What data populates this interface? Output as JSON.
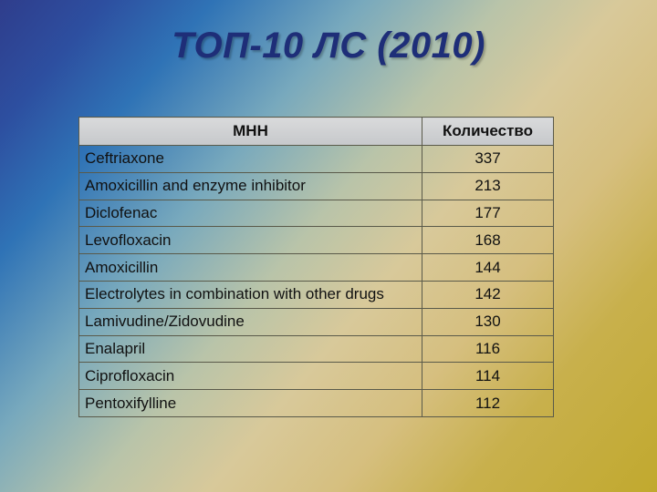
{
  "title": "ТОП-10 ЛС (2010)",
  "table": {
    "headers": [
      "МНН",
      "Количество"
    ],
    "rows": [
      {
        "name": "Ceftriaxone",
        "qty": "337"
      },
      {
        "name": "Amoxicillin and enzyme inhibitor",
        "qty": "213"
      },
      {
        "name": "Diclofenac",
        "qty": "177"
      },
      {
        "name": "Levofloxacin",
        "qty": "168"
      },
      {
        "name": "Amoxicillin",
        "qty": "144"
      },
      {
        "name": "Electrolytes in combination with other drugs",
        "qty": "142"
      },
      {
        "name": "Lamivudine/Zidovudine",
        "qty": "130"
      },
      {
        "name": "Enalapril",
        "qty": "116"
      },
      {
        "name": "Ciprofloxacin",
        "qty": "114"
      },
      {
        "name": "Pentoxifylline",
        "qty": "112"
      }
    ]
  },
  "colors": {
    "title": "#1e2e78",
    "header_bg": "#cfd1d3",
    "border": "#5a5a4a"
  }
}
